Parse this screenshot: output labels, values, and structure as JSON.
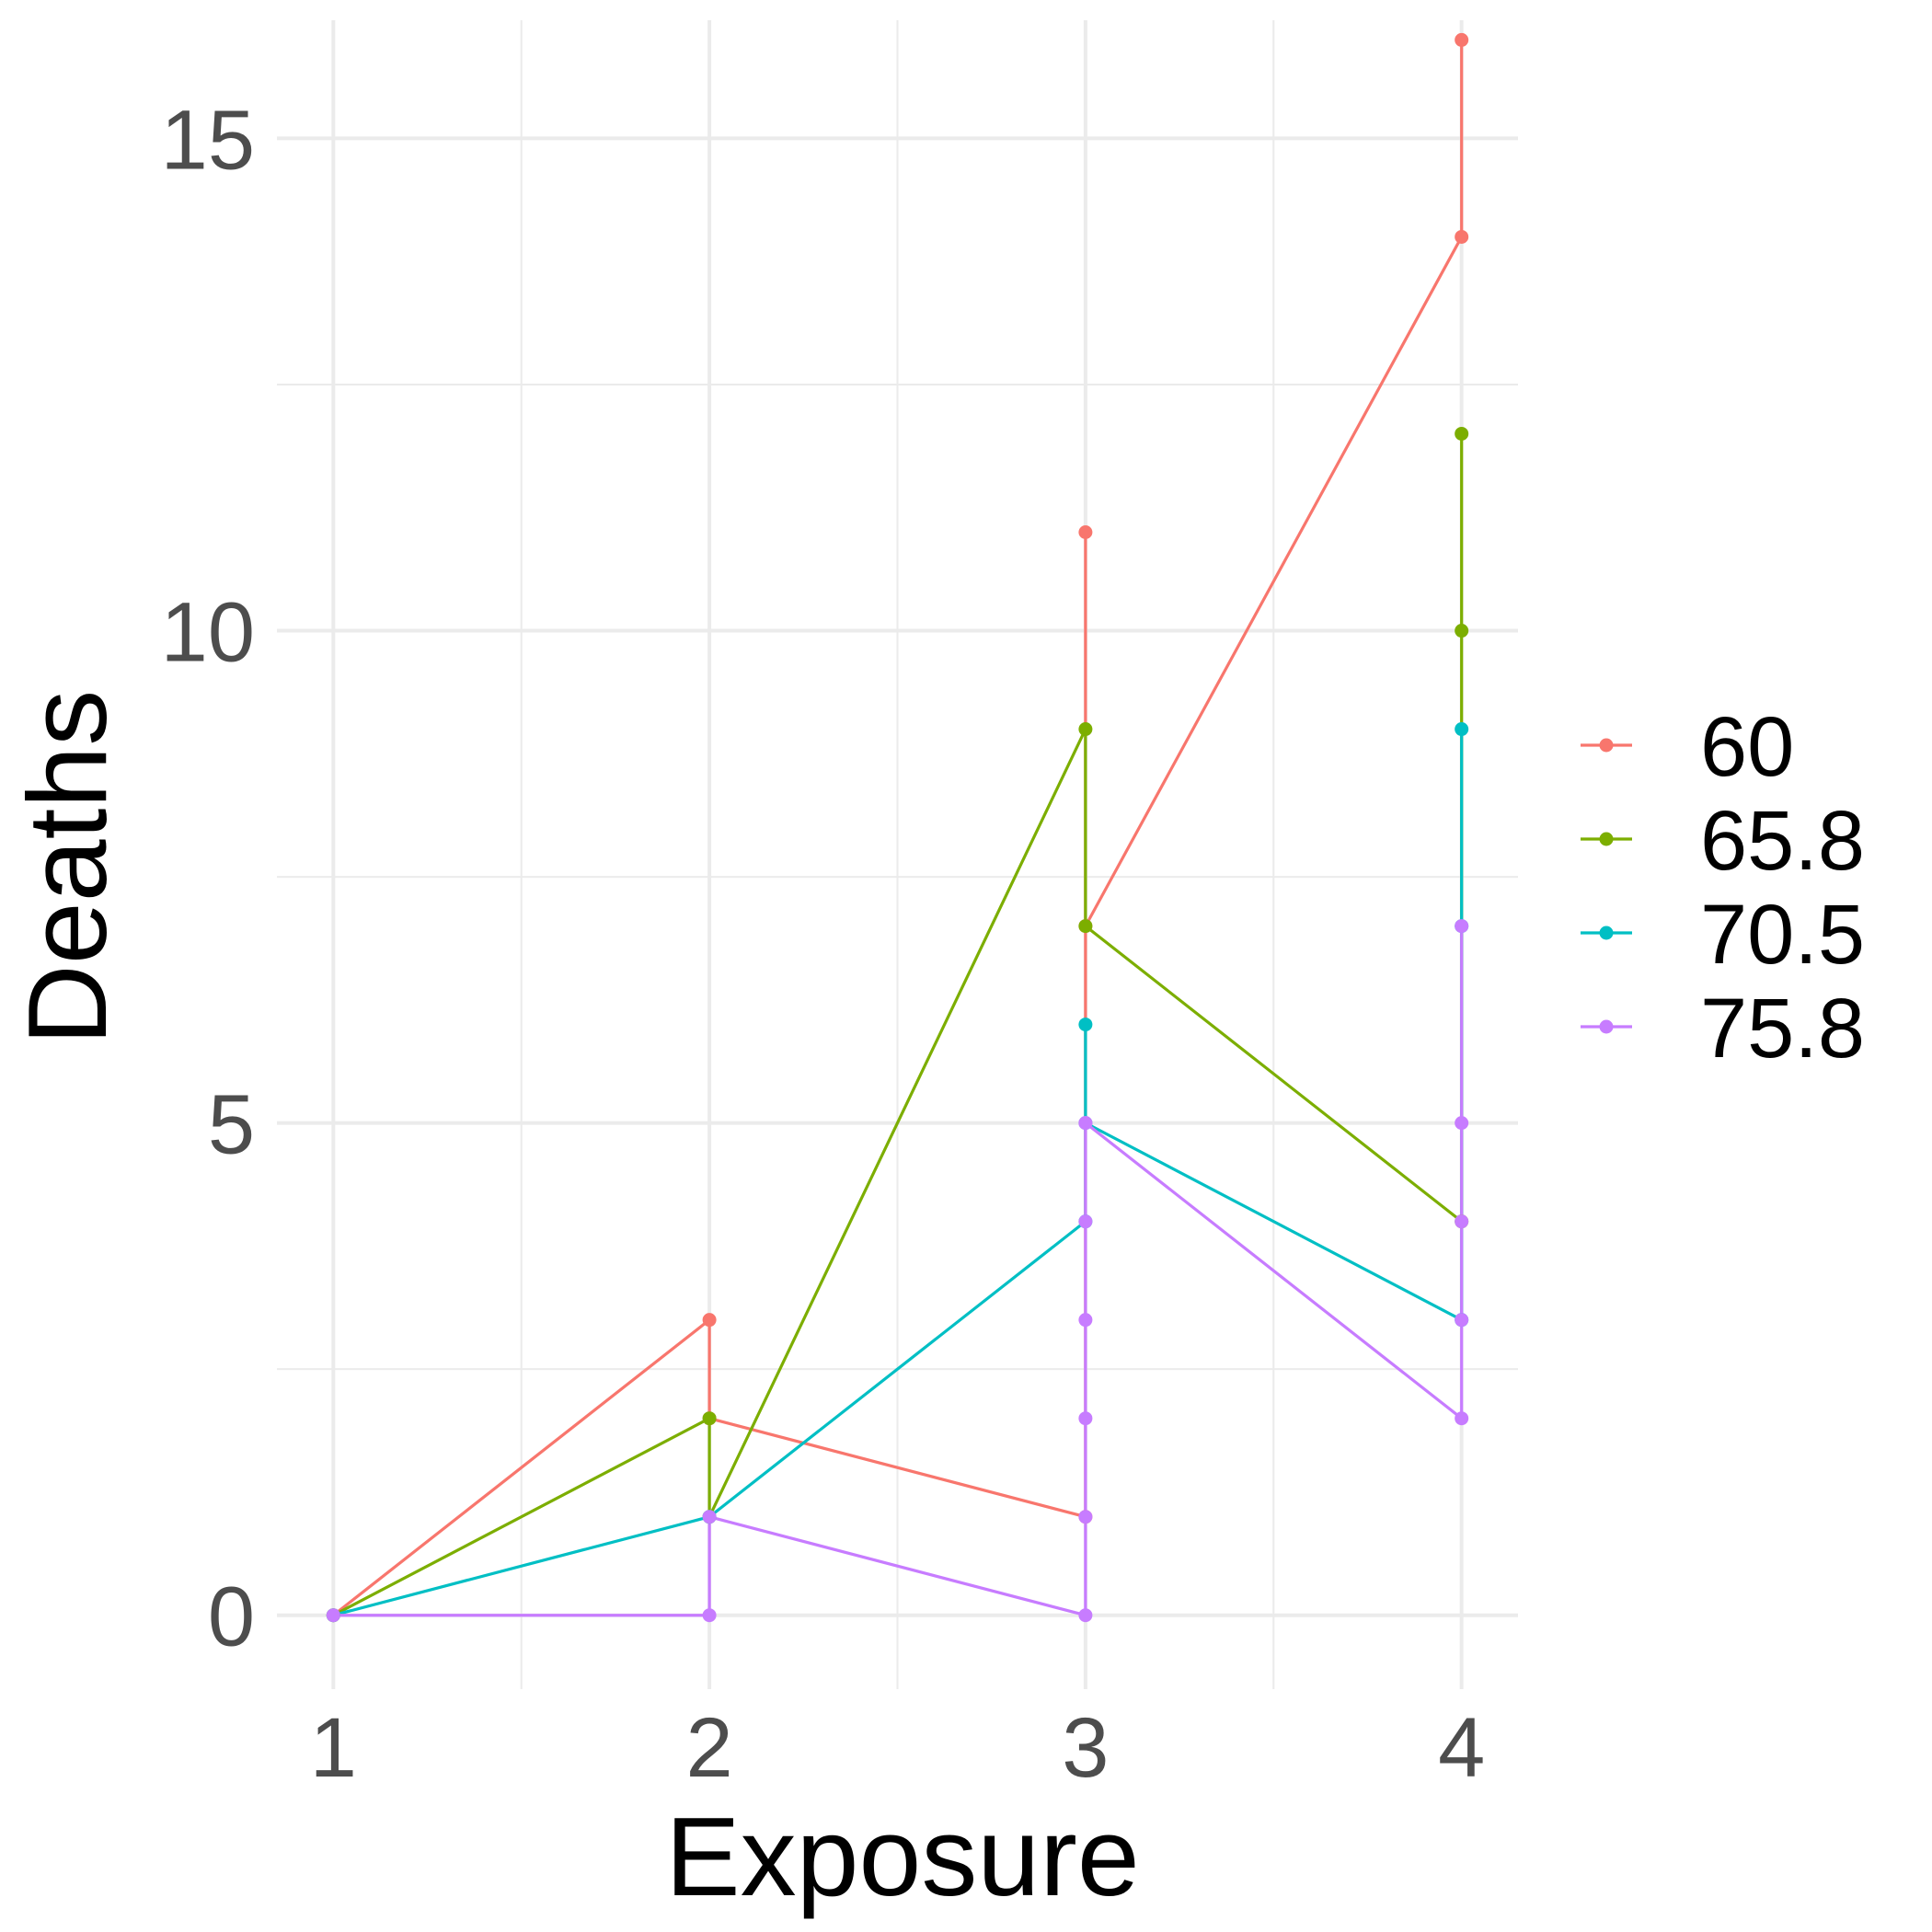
{
  "chart_data": {
    "type": "line",
    "xlabel": "Exposure",
    "ylabel": "Deaths",
    "xlim": [
      0.85,
      4.15
    ],
    "ylim": [
      -0.75,
      16.2
    ],
    "x_ticks": [
      1,
      2,
      3,
      4
    ],
    "x_minor": [
      1.5,
      2.5,
      3.5
    ],
    "y_ticks": [
      0,
      5,
      10,
      15
    ],
    "y_minor": [
      2.5,
      7.5,
      12.5
    ],
    "grid": true,
    "legend_position": "right",
    "series": [
      {
        "name": "60",
        "color": "#F8766D",
        "x": [
          1,
          2,
          2,
          3,
          3,
          3,
          4,
          4
        ],
        "y": [
          0,
          3,
          2,
          1,
          11,
          7,
          14,
          16
        ]
      },
      {
        "name": "65.8",
        "color": "#7CAE00",
        "x": [
          1,
          2,
          2,
          3,
          3,
          4,
          4,
          4
        ],
        "y": [
          0,
          2,
          1,
          9,
          7,
          4,
          10,
          12
        ]
      },
      {
        "name": "70.5",
        "color": "#00BFC4",
        "x": [
          1,
          2,
          3,
          3,
          3,
          4,
          4,
          4
        ],
        "y": [
          0,
          1,
          4,
          6,
          5,
          3,
          7,
          9
        ]
      },
      {
        "name": "75.8",
        "color": "#C77CFF",
        "x": [
          1,
          2,
          2,
          3,
          3,
          3,
          3,
          3,
          3,
          3,
          4,
          4,
          4,
          4,
          4
        ],
        "y": [
          0,
          0,
          1,
          0,
          1,
          2,
          3,
          4,
          5,
          5,
          2,
          3,
          4,
          5,
          7
        ]
      }
    ]
  }
}
